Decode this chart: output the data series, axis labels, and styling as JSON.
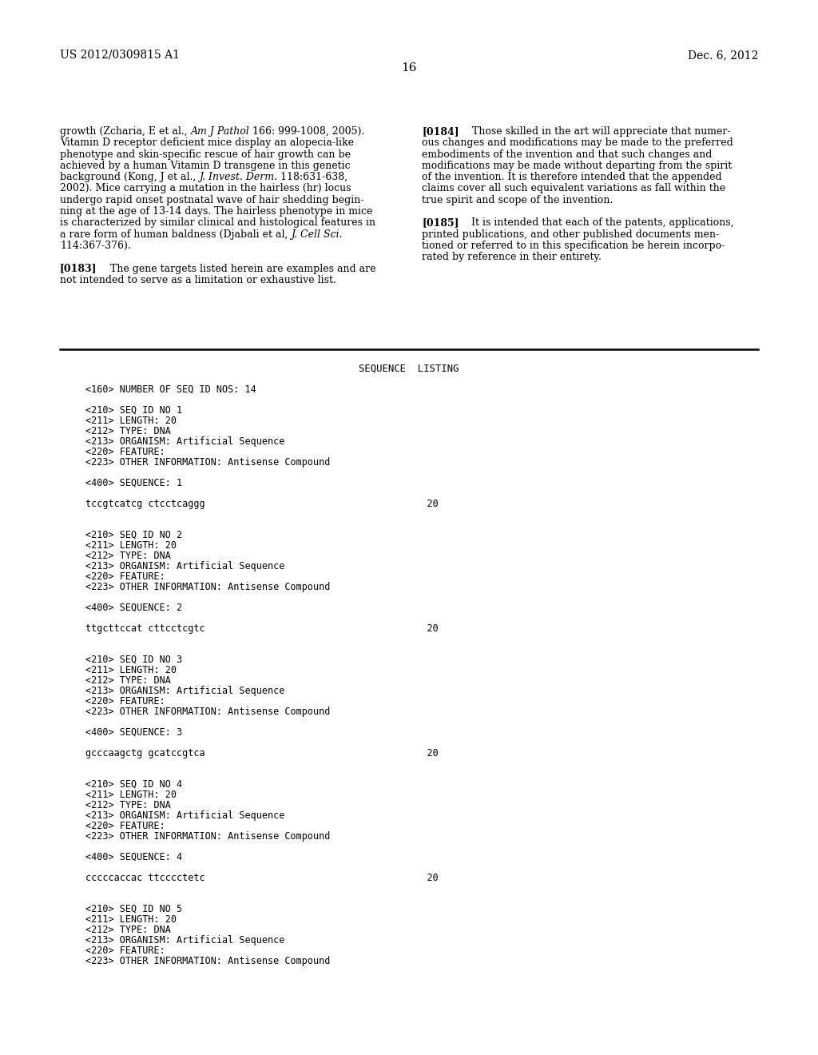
{
  "background_color": "#ffffff",
  "header_left": "US 2012/0309815 A1",
  "header_right": "Dec. 6, 2012",
  "page_number": "16",
  "seq_listing_lines": [
    "<160> NUMBER OF SEQ ID NOS: 14",
    "",
    "<210> SEQ ID NO 1",
    "<211> LENGTH: 20",
    "<212> TYPE: DNA",
    "<213> ORGANISM: Artificial Sequence",
    "<220> FEATURE:",
    "<223> OTHER INFORMATION: Antisense Compound",
    "",
    "<400> SEQUENCE: 1",
    "",
    "tccgtcatcg ctcctcaggg                                       20",
    "",
    "",
    "<210> SEQ ID NO 2",
    "<211> LENGTH: 20",
    "<212> TYPE: DNA",
    "<213> ORGANISM: Artificial Sequence",
    "<220> FEATURE:",
    "<223> OTHER INFORMATION: Antisense Compound",
    "",
    "<400> SEQUENCE: 2",
    "",
    "ttgcttccat cttcctcgtc                                       20",
    "",
    "",
    "<210> SEQ ID NO 3",
    "<211> LENGTH: 20",
    "<212> TYPE: DNA",
    "<213> ORGANISM: Artificial Sequence",
    "<220> FEATURE:",
    "<223> OTHER INFORMATION: Antisense Compound",
    "",
    "<400> SEQUENCE: 3",
    "",
    "gcccaagctg gcatccgtca                                       20",
    "",
    "",
    "<210> SEQ ID NO 4",
    "<211> LENGTH: 20",
    "<212> TYPE: DNA",
    "<213> ORGANISM: Artificial Sequence",
    "<220> FEATURE:",
    "<223> OTHER INFORMATION: Antisense Compound",
    "",
    "<400> SEQUENCE: 4",
    "",
    "cccccaccac ttcccctetc                                       20",
    "",
    "",
    "<210> SEQ ID NO 5",
    "<211> LENGTH: 20",
    "<212> TYPE: DNA",
    "<213> ORGANISM: Artificial Sequence",
    "<220> FEATURE:",
    "<223> OTHER INFORMATION: Antisense Compound"
  ]
}
